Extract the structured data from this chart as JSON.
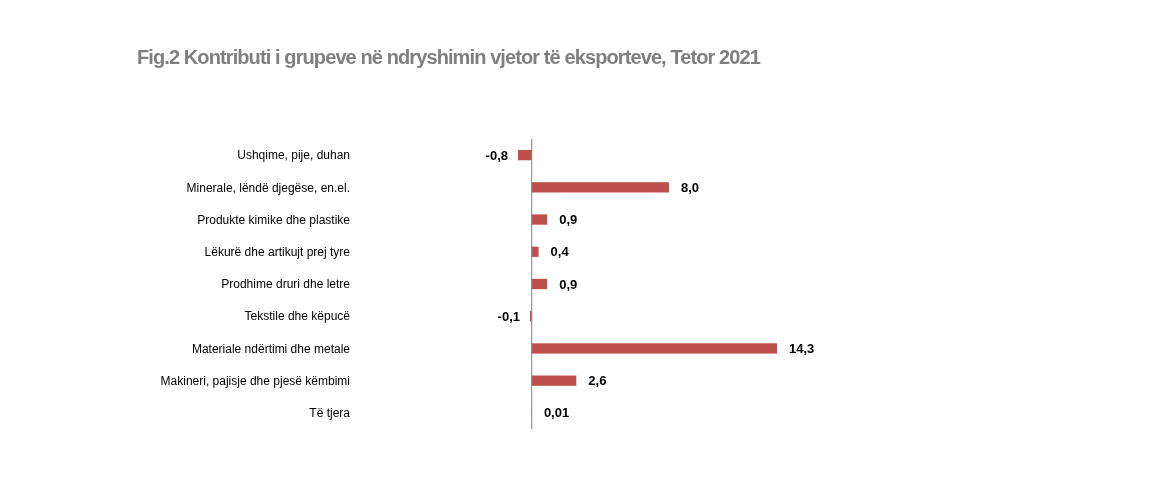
{
  "chart_data": {
    "type": "bar",
    "orientation": "horizontal",
    "title": "Fig.2 Kontributi i grupeve në ndryshimin vjetor të eksporteve, Tetor 2021",
    "categories": [
      "Ushqime, pije, duhan",
      "Minerale, lëndë djegëse, en.el.",
      "Produkte kimike dhe plastike",
      "Lëkurë dhe artikujt prej tyre",
      "Prodhime druri dhe letre",
      "Tekstile dhe këpucë",
      "Materiale ndërtimi dhe metale",
      "Makineri, pajisje dhe pjesë këmbimi",
      "Të tjera"
    ],
    "values": [
      -0.8,
      8.0,
      0.9,
      0.4,
      0.9,
      -0.1,
      14.3,
      2.6,
      0.01
    ],
    "value_labels": [
      "-0,8",
      "8,0",
      "0,9",
      "0,4",
      "0,9",
      "-0,1",
      "14,3",
      "2,6",
      "0,01"
    ],
    "color": "#c0504d"
  }
}
